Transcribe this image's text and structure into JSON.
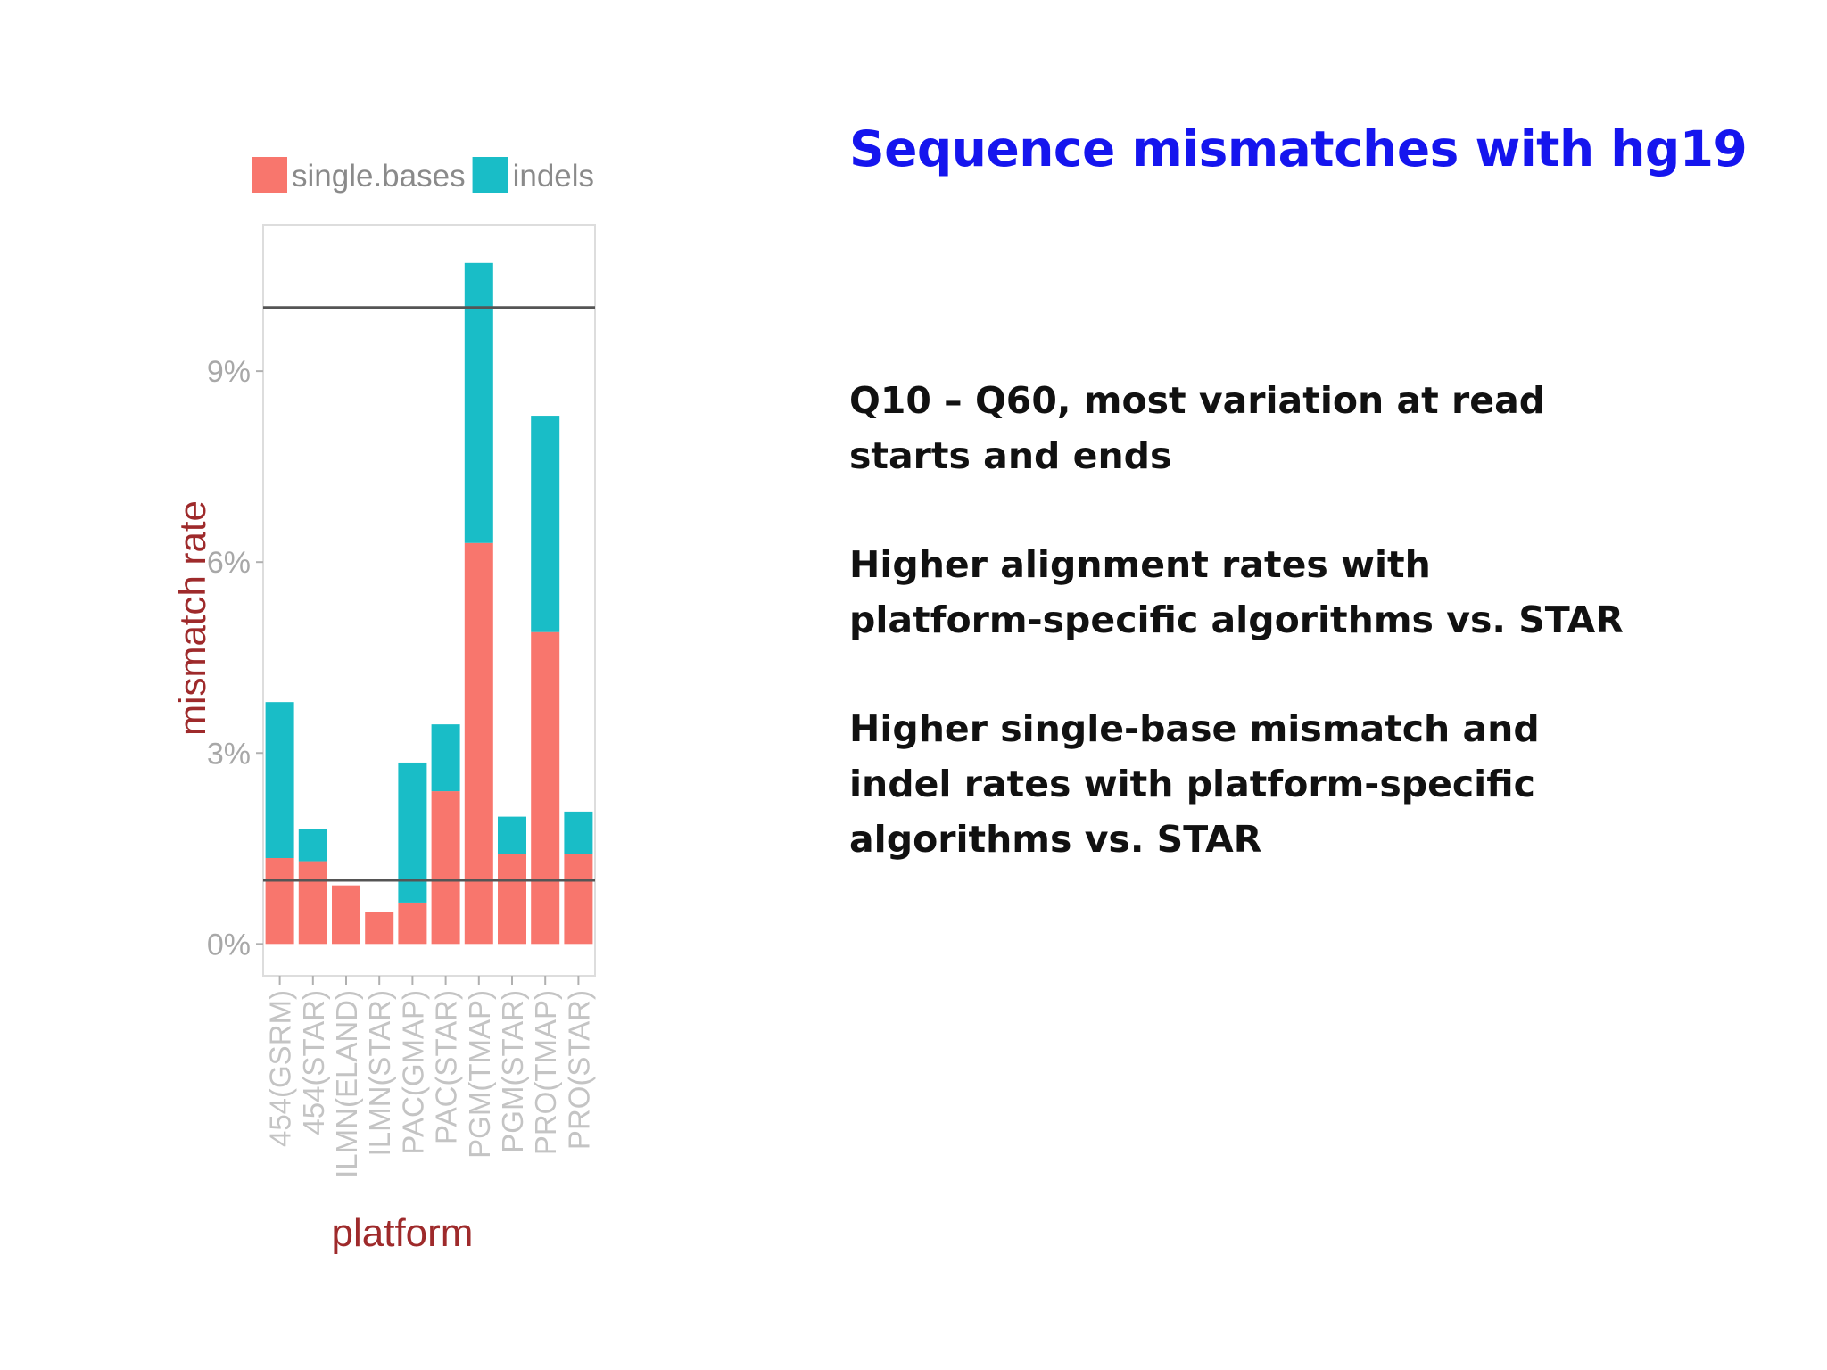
{
  "slide": {
    "title": "Sequence mismatches with hg19",
    "bullets": [
      {
        "lines": [
          "Q10 – Q60, most variation at read",
          "starts and ends"
        ]
      },
      {
        "lines": [
          "Higher alignment rates with",
          "platform-specific algorithms vs. STAR"
        ]
      },
      {
        "lines": [
          "Higher single-base mismatch and",
          "indel rates with platform-specific",
          "algorithms vs. STAR"
        ]
      }
    ]
  },
  "colors": {
    "single_bases": "#f8766d",
    "indels": "#19bdc7",
    "axis_label": "#9e2a2b",
    "tick_label": "#a8a8a8",
    "title": "#1515ee"
  },
  "chart_data": {
    "type": "bar",
    "stacked": true,
    "xlabel": "platform",
    "ylabel": "mismatch rate",
    "ylim": [
      -0.5,
      11.3
    ],
    "yticks": [
      0,
      3,
      6,
      9
    ],
    "ytick_labels": [
      "0%",
      "3%",
      "6%",
      "9%"
    ],
    "legend_position": "top",
    "categories": [
      "454(GSRM)",
      "454(STAR)",
      "ILMN(ELAND)",
      "ILMN(STAR)",
      "PAC(GMAP)",
      "PAC(STAR)",
      "PGM(TMAP)",
      "PGM(STAR)",
      "PRO(TMAP)",
      "PRO(STAR)"
    ],
    "series": [
      {
        "name": "single.bases",
        "values": [
          1.35,
          1.3,
          0.92,
          0.5,
          0.65,
          2.4,
          6.3,
          1.42,
          4.9,
          1.42
        ]
      },
      {
        "name": "indels",
        "values": [
          2.45,
          0.5,
          0.0,
          0.0,
          2.2,
          1.05,
          4.4,
          0.58,
          3.4,
          0.66
        ]
      }
    ],
    "hlines": [
      1.0,
      10.0
    ]
  }
}
